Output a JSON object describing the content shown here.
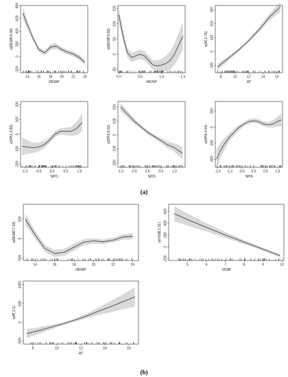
{
  "captions": {
    "a": "(a)",
    "b": "(b)"
  },
  "chart_data": [
    {
      "panel": "a",
      "type": "line",
      "ylabel": "s(DEWP,8.46)",
      "xlabel": "DEWP",
      "xticks": [
        14,
        16,
        18,
        20,
        22,
        24
      ],
      "yticks": [
        -200,
        0,
        200,
        400,
        600,
        800
      ],
      "xlim": [
        12.8,
        24.5
      ],
      "ylim": [
        -250,
        800
      ],
      "x": [
        13.2,
        14.0,
        15.0,
        16.0,
        17.0,
        18.0,
        19.0,
        20.0,
        21.0,
        22.0,
        23.0,
        24.0
      ],
      "y": [
        680,
        500,
        280,
        110,
        60,
        150,
        165,
        110,
        70,
        40,
        -10,
        -90
      ],
      "band": [
        95,
        60,
        45,
        40,
        40,
        45,
        45,
        40,
        35,
        40,
        45,
        35
      ]
    },
    {
      "panel": "a",
      "type": "line",
      "ylabel": "s(WDSP,5.59)",
      "xlabel": "WDSP",
      "xticks": [
        0.0,
        0.5,
        1.0,
        1.5
      ],
      "yticks": [
        -50,
        0,
        50,
        100,
        150
      ],
      "xlim": [
        -0.02,
        1.55
      ],
      "ylim": [
        -60,
        160
      ],
      "x": [
        0.0,
        0.1,
        0.2,
        0.3,
        0.4,
        0.5,
        0.6,
        0.7,
        0.8,
        0.9,
        1.0,
        1.1,
        1.2,
        1.3,
        1.4,
        1.5
      ],
      "y": [
        130,
        60,
        5,
        -10,
        -5,
        0,
        -5,
        -20,
        -35,
        -38,
        -35,
        -30,
        -20,
        0,
        30,
        60
      ],
      "band": [
        25,
        18,
        15,
        15,
        15,
        15,
        15,
        15,
        15,
        18,
        20,
        25,
        30,
        35,
        40,
        45
      ]
    },
    {
      "panel": "a",
      "type": "line",
      "ylabel": "s(AT,1.75)",
      "xlabel": "AT",
      "xticks": [
        8,
        10,
        12,
        14,
        16
      ],
      "yticks": [
        -100,
        0,
        100,
        200,
        300
      ],
      "xlim": [
        7.2,
        16.8
      ],
      "ylim": [
        -150,
        330
      ],
      "x": [
        7.5,
        9.0,
        10.5,
        12.0,
        13.5,
        15.0,
        16.5
      ],
      "y": [
        -110,
        -50,
        10,
        80,
        160,
        250,
        320
      ],
      "band": [
        25,
        15,
        12,
        12,
        18,
        25,
        35
      ]
    },
    {
      "panel": "a",
      "type": "line",
      "ylabel": "s(SPI1,3.89)",
      "xlabel": "SPI1",
      "xticks": [
        -1.0,
        -0.5,
        0.0,
        0.5,
        1.0
      ],
      "yticks": [
        -200,
        -100,
        0,
        100,
        200
      ],
      "xlim": [
        -1.15,
        1.3
      ],
      "ylim": [
        -220,
        220
      ],
      "x": [
        -1.1,
        -0.9,
        -0.7,
        -0.5,
        -0.3,
        -0.1,
        0.1,
        0.3,
        0.5,
        0.7,
        0.9,
        1.1
      ],
      "y": [
        -80,
        -85,
        -90,
        -85,
        -70,
        -40,
        0,
        20,
        20,
        20,
        40,
        80
      ],
      "band": [
        60,
        45,
        35,
        30,
        25,
        20,
        20,
        22,
        25,
        30,
        45,
        60
      ]
    },
    {
      "panel": "a",
      "type": "line",
      "ylabel": "s(SPI3,2.02)",
      "xlabel": "SPI3",
      "xticks": [
        -1.0,
        -0.5,
        0.0,
        0.5,
        1.0
      ],
      "yticks": [
        -200,
        -100,
        0,
        100,
        200
      ],
      "xlim": [
        -1.1,
        1.4
      ],
      "ylim": [
        -230,
        240
      ],
      "x": [
        -1.0,
        -0.75,
        -0.5,
        -0.25,
        0.0,
        0.25,
        0.5,
        0.75,
        1.0,
        1.3
      ],
      "y": [
        200,
        150,
        100,
        60,
        20,
        -10,
        -40,
        -70,
        -90,
        -130
      ],
      "band": [
        30,
        25,
        20,
        15,
        15,
        15,
        20,
        25,
        30,
        45
      ]
    },
    {
      "panel": "a",
      "type": "line",
      "ylabel": "s(SPI9,4.04)",
      "xlabel": "SPI9",
      "xticks": [
        -1.5,
        -1.0,
        -0.5,
        0.0,
        0.5,
        1.0
      ],
      "yticks": [
        -400,
        -200,
        0,
        200
      ],
      "xlim": [
        -1.6,
        1.2
      ],
      "ylim": [
        -500,
        320
      ],
      "x": [
        -1.55,
        -1.4,
        -1.2,
        -1.0,
        -0.8,
        -0.6,
        -0.4,
        -0.2,
        0.0,
        0.2,
        0.4,
        0.6,
        0.8,
        1.0,
        1.15
      ],
      "y": [
        -400,
        -300,
        -200,
        -120,
        -60,
        0,
        40,
        70,
        80,
        70,
        40,
        30,
        40,
        70,
        90
      ],
      "band": [
        130,
        100,
        70,
        50,
        40,
        35,
        30,
        30,
        30,
        30,
        30,
        35,
        45,
        60,
        80
      ]
    },
    {
      "panel": "b",
      "type": "line",
      "ylabel": "s(DEWP,7.18)",
      "xlabel": "DEWP",
      "xticks": [
        14,
        16,
        18,
        20,
        22,
        24
      ],
      "yticks": [
        -500,
        0,
        500
      ],
      "xlim": [
        12.8,
        24.6
      ],
      "ylim": [
        -560,
        880
      ],
      "x": [
        13.0,
        14.0,
        15.0,
        16.0,
        17.0,
        18.0,
        19.0,
        20.0,
        21.0,
        22.0,
        23.0,
        24.0
      ],
      "y": [
        500,
        100,
        -250,
        -380,
        -350,
        -220,
        -90,
        -60,
        -80,
        -40,
        40,
        60
      ],
      "band": [
        140,
        110,
        90,
        90,
        90,
        85,
        80,
        70,
        60,
        60,
        70,
        80
      ]
    },
    {
      "panel": "b",
      "type": "line",
      "ylabel": "s(VISIB,1.21)",
      "xlabel": "VISIB",
      "xticks": [
        5,
        6,
        7,
        8,
        9,
        10
      ],
      "yticks": [
        -200,
        0,
        200,
        400,
        600
      ],
      "xlim": [
        4.0,
        10.1
      ],
      "ylim": [
        -230,
        720
      ],
      "x": [
        4.3,
        5.0,
        6.0,
        7.0,
        8.0,
        9.0,
        9.9
      ],
      "y": [
        560,
        460,
        330,
        200,
        80,
        -40,
        -150
      ],
      "band": [
        130,
        100,
        70,
        50,
        35,
        25,
        25
      ]
    },
    {
      "panel": "b",
      "type": "line",
      "ylabel": "s(AT,2.1)",
      "xlabel": "AT",
      "xticks": [
        8,
        10,
        12,
        14,
        16
      ],
      "yticks": [
        -500,
        0,
        500,
        1000
      ],
      "xlim": [
        7.2,
        16.8
      ],
      "ylim": [
        -580,
        1100
      ],
      "x": [
        7.5,
        8.5,
        9.5,
        10.5,
        11.5,
        12.5,
        13.5,
        14.5,
        15.5,
        16.5
      ],
      "y": [
        -300,
        -220,
        -130,
        -40,
        60,
        170,
        300,
        420,
        550,
        680
      ],
      "band": [
        120,
        90,
        60,
        40,
        40,
        60,
        100,
        150,
        200,
        260
      ]
    }
  ]
}
